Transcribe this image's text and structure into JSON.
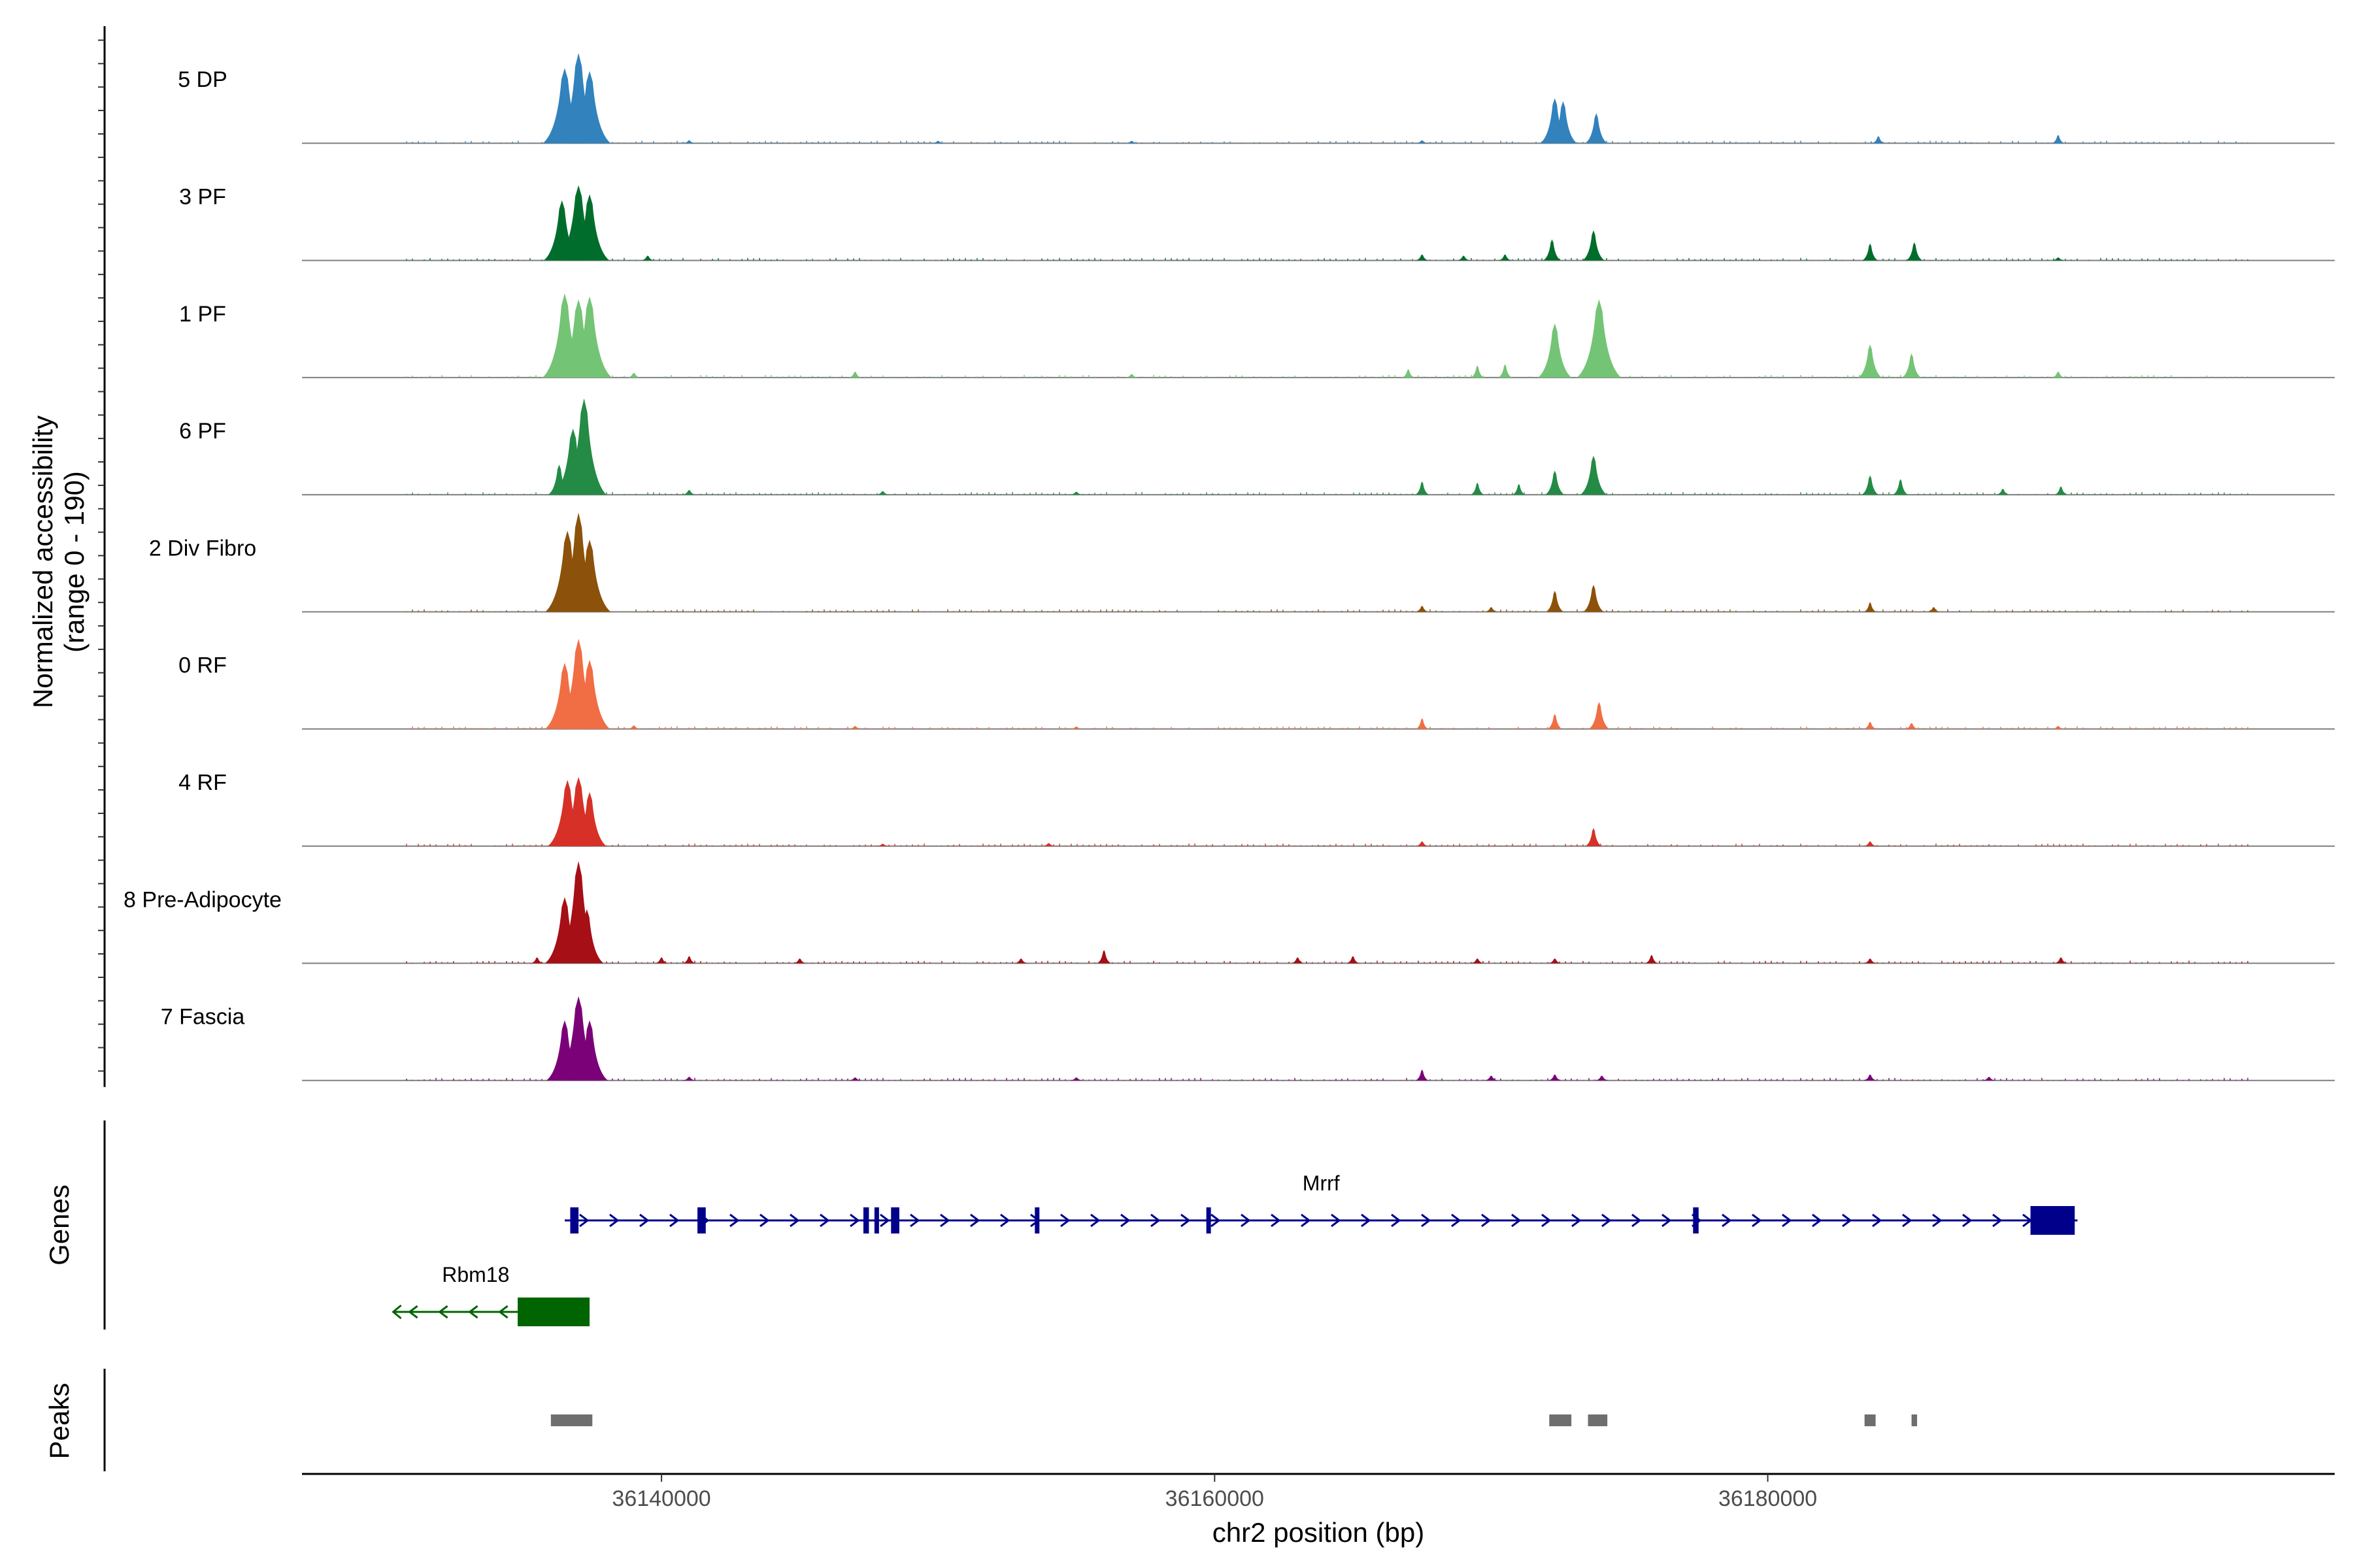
{
  "chart_data": {
    "type": "area",
    "chromosome": "chr2",
    "x_range": [
      36127000,
      36200500
    ],
    "x_ticks": [
      36140000,
      36160000,
      36180000
    ],
    "xlabel": "chr2 position (bp)",
    "ylabel_line1": "Normalized accessibility",
    "ylabel_line2": "(range 0 - 190)",
    "y_range": [
      0,
      190
    ],
    "tracks": [
      {
        "name": "5 DP",
        "color": "#3182bd",
        "peaks": [
          [
            36136500,
            125
          ],
          [
            36137000,
            150
          ],
          [
            36137400,
            120
          ],
          [
            36141000,
            5
          ],
          [
            36150000,
            4
          ],
          [
            36157000,
            4
          ],
          [
            36167500,
            5
          ],
          [
            36172300,
            75
          ],
          [
            36172600,
            70
          ],
          [
            36173800,
            50
          ],
          [
            36184000,
            12
          ],
          [
            36190500,
            14
          ]
        ]
      },
      {
        "name": "3 PF",
        "color": "#006d2c",
        "peaks": [
          [
            36136400,
            100
          ],
          [
            36137000,
            125
          ],
          [
            36137400,
            110
          ],
          [
            36139500,
            8
          ],
          [
            36167500,
            10
          ],
          [
            36169000,
            8
          ],
          [
            36170500,
            10
          ],
          [
            36172200,
            35
          ],
          [
            36173700,
            50
          ],
          [
            36183700,
            28
          ],
          [
            36185300,
            30
          ],
          [
            36190500,
            5
          ]
        ]
      },
      {
        "name": "1 PF",
        "color": "#74c476",
        "peaks": [
          [
            36136500,
            140
          ],
          [
            36137000,
            130
          ],
          [
            36137400,
            135
          ],
          [
            36139000,
            8
          ],
          [
            36147000,
            10
          ],
          [
            36157000,
            6
          ],
          [
            36167000,
            14
          ],
          [
            36169500,
            20
          ],
          [
            36170500,
            22
          ],
          [
            36172300,
            90
          ],
          [
            36173900,
            130
          ],
          [
            36183700,
            55
          ],
          [
            36185200,
            40
          ],
          [
            36190500,
            10
          ]
        ]
      },
      {
        "name": "6 PF",
        "color": "#238b45",
        "peaks": [
          [
            36136300,
            50
          ],
          [
            36136800,
            110
          ],
          [
            36137200,
            160
          ],
          [
            36141000,
            8
          ],
          [
            36148000,
            6
          ],
          [
            36155000,
            5
          ],
          [
            36167500,
            22
          ],
          [
            36169500,
            20
          ],
          [
            36171000,
            18
          ],
          [
            36172300,
            40
          ],
          [
            36173700,
            65
          ],
          [
            36183700,
            32
          ],
          [
            36184800,
            26
          ],
          [
            36188500,
            10
          ],
          [
            36190600,
            14
          ]
        ]
      },
      {
        "name": "2 Div Fibro",
        "color": "#8c510a",
        "peaks": [
          [
            36136600,
            135
          ],
          [
            36137000,
            165
          ],
          [
            36137400,
            120
          ],
          [
            36167500,
            10
          ],
          [
            36170000,
            8
          ],
          [
            36172300,
            35
          ],
          [
            36173700,
            45
          ],
          [
            36183700,
            16
          ],
          [
            36186000,
            8
          ]
        ]
      },
      {
        "name": "0 RF",
        "color": "#f16d43",
        "peaks": [
          [
            36136500,
            110
          ],
          [
            36137000,
            150
          ],
          [
            36137400,
            115
          ],
          [
            36139000,
            6
          ],
          [
            36147000,
            5
          ],
          [
            36155000,
            4
          ],
          [
            36167500,
            18
          ],
          [
            36172300,
            25
          ],
          [
            36173900,
            45
          ],
          [
            36183700,
            12
          ],
          [
            36185200,
            10
          ],
          [
            36190500,
            5
          ]
        ]
      },
      {
        "name": "4 RF",
        "color": "#d73027",
        "peaks": [
          [
            36136600,
            110
          ],
          [
            36137000,
            115
          ],
          [
            36137400,
            90
          ],
          [
            36148000,
            4
          ],
          [
            36154000,
            5
          ],
          [
            36167500,
            8
          ],
          [
            36173700,
            30
          ],
          [
            36183700,
            8
          ]
        ]
      },
      {
        "name": "8 Pre-Adipocyte",
        "color": "#a50f15",
        "peaks": [
          [
            36135500,
            10
          ],
          [
            36136500,
            110
          ],
          [
            36137000,
            170
          ],
          [
            36137300,
            90
          ],
          [
            36140000,
            10
          ],
          [
            36141000,
            12
          ],
          [
            36145000,
            8
          ],
          [
            36153000,
            8
          ],
          [
            36156000,
            22
          ],
          [
            36163000,
            10
          ],
          [
            36165000,
            12
          ],
          [
            36169500,
            8
          ],
          [
            36172300,
            8
          ],
          [
            36175800,
            14
          ],
          [
            36183700,
            8
          ],
          [
            36190600,
            10
          ]
        ]
      },
      {
        "name": "7 Fascia",
        "color": "#7a0177",
        "peaks": [
          [
            36136500,
            100
          ],
          [
            36137000,
            140
          ],
          [
            36137400,
            100
          ],
          [
            36141000,
            6
          ],
          [
            36147000,
            5
          ],
          [
            36155000,
            5
          ],
          [
            36167500,
            18
          ],
          [
            36170000,
            8
          ],
          [
            36172300,
            10
          ],
          [
            36174000,
            8
          ],
          [
            36183700,
            10
          ],
          [
            36188000,
            6
          ]
        ]
      }
    ],
    "genes_label": "Genes",
    "genes": [
      {
        "name": "Mrrf",
        "strand": "+",
        "color": "#00008b",
        "start": 36136500,
        "end": 36191200,
        "exons": [
          [
            36136700,
            36137000
          ],
          [
            36141300,
            36141600
          ],
          [
            36147300,
            36147500
          ],
          [
            36147700,
            36147800
          ],
          [
            36148300,
            36148600
          ],
          [
            36153500,
            36153600
          ],
          [
            36159700,
            36159800
          ],
          [
            36177300,
            36177500
          ],
          [
            36189500,
            36191100
          ]
        ]
      },
      {
        "name": "Rbm18",
        "strand": "-",
        "color": "#006400",
        "start": 36130300,
        "end": 36137400,
        "exons": [
          [
            36134800,
            36137400
          ]
        ]
      }
    ],
    "peaks_label": "Peaks",
    "peak_regions": [
      [
        36136000,
        36137500
      ],
      [
        36172100,
        36172900
      ],
      [
        36173500,
        36174200
      ],
      [
        36183500,
        36183900
      ],
      [
        36185200,
        36185400
      ]
    ]
  }
}
